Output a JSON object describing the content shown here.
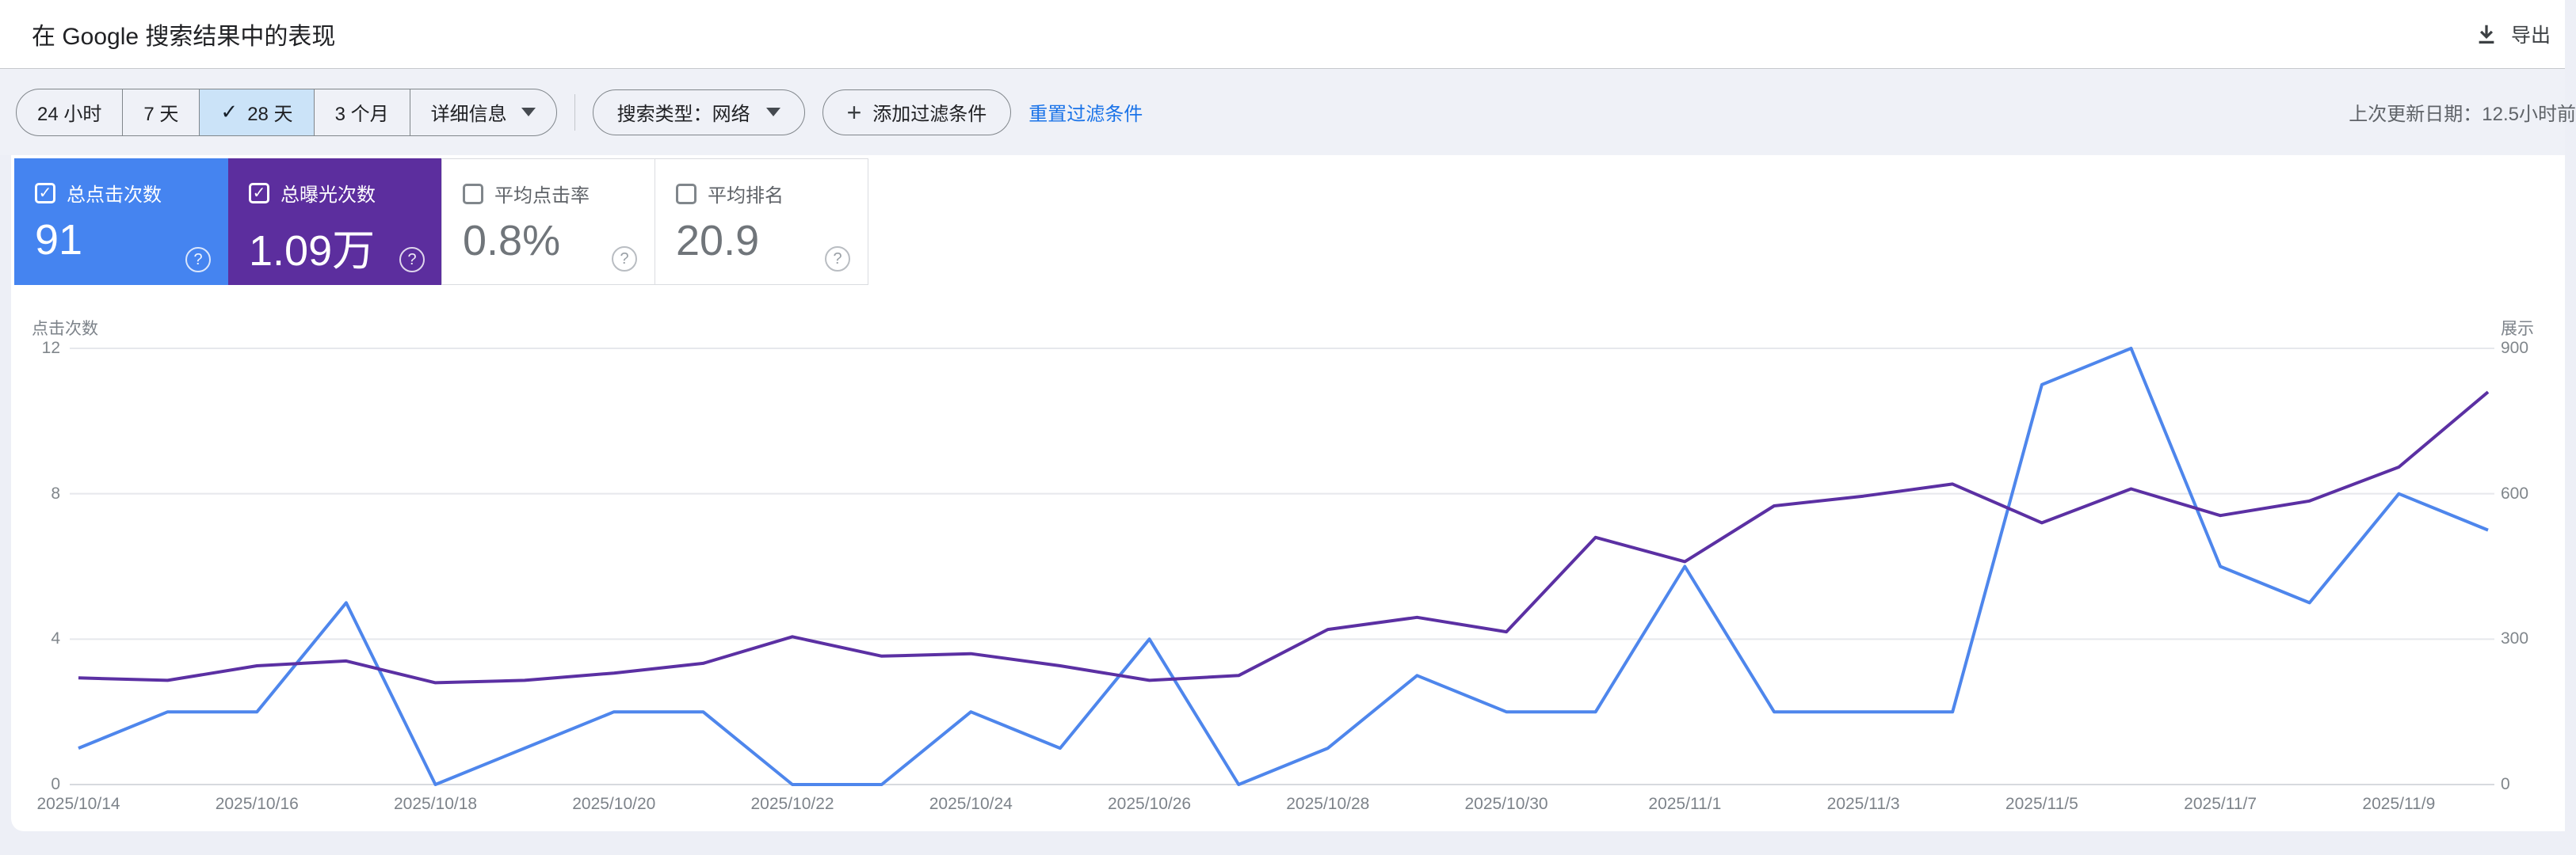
{
  "header": {
    "title": "在 Google 搜索结果中的表现",
    "export_label": "导出"
  },
  "toolbar": {
    "date_ranges": [
      {
        "label": "24 小时",
        "selected": false
      },
      {
        "label": "7 天",
        "selected": false
      },
      {
        "label": "28 天",
        "selected": true
      },
      {
        "label": "3 个月",
        "selected": false
      },
      {
        "label": "详细信息",
        "selected": false,
        "dropdown": true
      }
    ],
    "search_type_label": "搜索类型：网络",
    "add_filter_label": "添加过滤条件",
    "reset_filters_label": "重置过滤条件",
    "last_updated": "上次更新日期：12.5小时前"
  },
  "cards": [
    {
      "label": "总点击次数",
      "value": "91",
      "checked": true,
      "color": "#4584f0"
    },
    {
      "label": "总曝光次数",
      "value": "1.09万",
      "checked": true,
      "color": "#5c2e9e"
    },
    {
      "label": "平均点击率",
      "value": "0.8%",
      "checked": false,
      "color": null
    },
    {
      "label": "平均排名",
      "value": "20.9",
      "checked": false,
      "color": null
    }
  ],
  "chart_data": {
    "type": "line",
    "title": "在 Google 搜索结果中的表现",
    "x": [
      "2025/10/14",
      "2025/10/15",
      "2025/10/16",
      "2025/10/17",
      "2025/10/18",
      "2025/10/19",
      "2025/10/20",
      "2025/10/21",
      "2025/10/22",
      "2025/10/23",
      "2025/10/24",
      "2025/10/25",
      "2025/10/26",
      "2025/10/27",
      "2025/10/28",
      "2025/10/29",
      "2025/10/30",
      "2025/10/31",
      "2025/11/1",
      "2025/11/2",
      "2025/11/3",
      "2025/11/4",
      "2025/11/5",
      "2025/11/6",
      "2025/11/7",
      "2025/11/8",
      "2025/11/9",
      "2025/11/10"
    ],
    "x_label_every": 2,
    "series": [
      {
        "name": "点击次数",
        "axis": "left",
        "color": "#4e86ec",
        "values": [
          1,
          2,
          2,
          5,
          0,
          1,
          2,
          2,
          0,
          0,
          2,
          1,
          4,
          0,
          1,
          3,
          2,
          2,
          6,
          2,
          2,
          2,
          11,
          12,
          6,
          5,
          8,
          7
        ]
      },
      {
        "name": "展示",
        "axis": "right",
        "color": "#5b30a3",
        "values": [
          220,
          215,
          245,
          255,
          210,
          215,
          230,
          250,
          305,
          265,
          270,
          245,
          215,
          225,
          320,
          345,
          315,
          510,
          460,
          575,
          595,
          620,
          540,
          610,
          555,
          585,
          655,
          810
        ]
      }
    ],
    "left_axis": {
      "title": "点击次数",
      "ticks": [
        12,
        8,
        4,
        0
      ],
      "max": 12
    },
    "right_axis": {
      "title": "展示",
      "ticks": [
        900,
        600,
        300,
        0
      ],
      "max": 900
    },
    "grid": true,
    "legend": "none"
  },
  "colors": {
    "grid_line": "#e6e8ec",
    "zero_line": "#d7dade",
    "selected_chip_bg": "#cbe3f8",
    "link_blue": "#1a73e8"
  }
}
